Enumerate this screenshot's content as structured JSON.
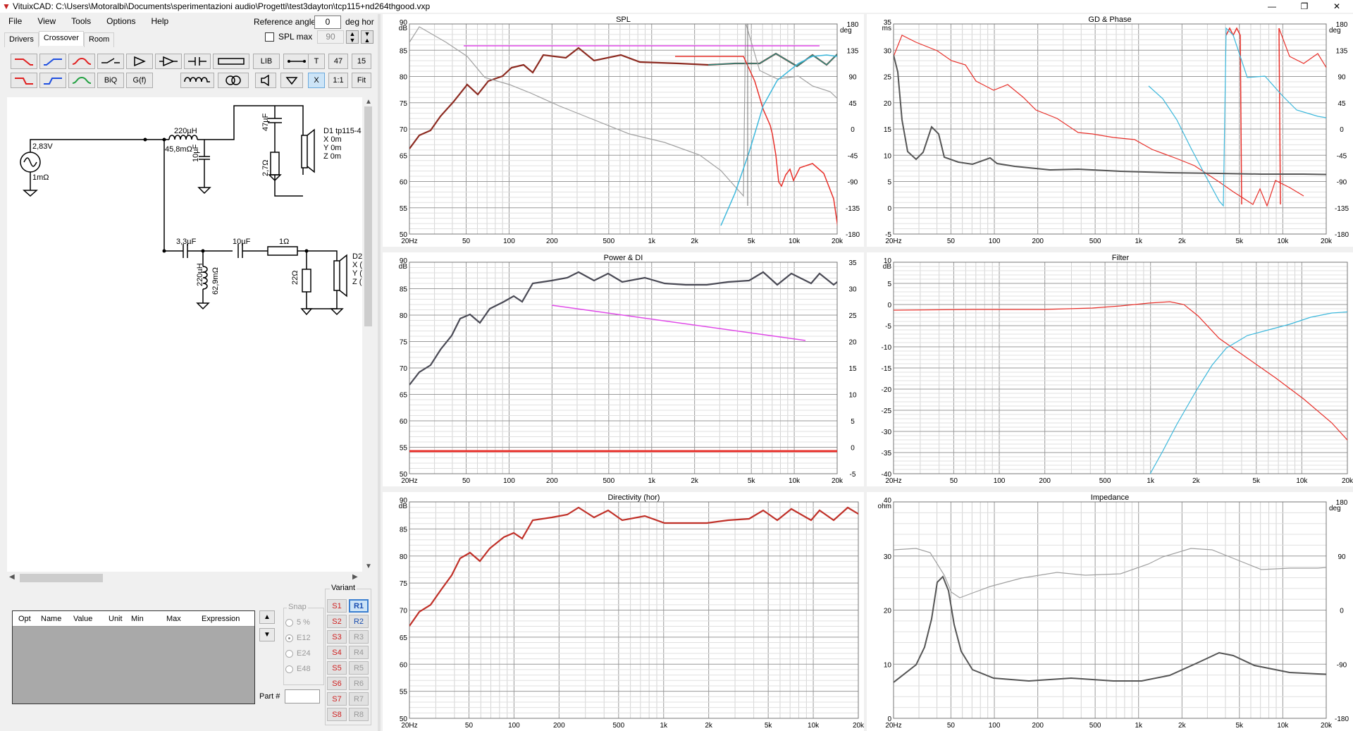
{
  "window": {
    "title": "VituixCAD: C:\\Users\\Motoralbi\\Documents\\sperimentazioni audio\\Progetti\\test3dayton\\tcp115+nd264thgood.vxp",
    "minimize": "—",
    "maximize": "❐",
    "close": "✕"
  },
  "menu": [
    "File",
    "View",
    "Tools",
    "Options",
    "Help"
  ],
  "reference": {
    "angle_label": "Reference angle",
    "angle_value": "0",
    "angle_unit": "deg hor",
    "spl_max_label": "SPL max",
    "spl_max_value": "90"
  },
  "tabs": [
    "Drivers",
    "Crossover",
    "Room"
  ],
  "toolbar": {
    "lib": "LIB",
    "t": "T",
    "n47": "47",
    "n15": "15",
    "biq": "BiQ",
    "gf": "G(f)",
    "x": "X",
    "ratio": "1:1",
    "fit": "Fit"
  },
  "schematic": {
    "source_v": "2,83V",
    "source_r": "1mΩ",
    "l1": "220µH",
    "l1_r": "45,8mΩ",
    "c1": "10µF",
    "c2": "47µF",
    "r1": "2,7Ω",
    "d1_name": "D1 tp115-4",
    "d1_x": "X 0m",
    "d1_y": "Y 0m",
    "d1_z": "Z 0m",
    "c3": "3,3µF",
    "c4": "10µF",
    "r2": "1Ω",
    "l2": "220µH",
    "l2_r": "62,9mΩ",
    "r3": "22Ω",
    "d2_name": "D2",
    "d2_x": "X (",
    "d2_y": "Y (",
    "d2_z": "Z ("
  },
  "opt_table": {
    "headers": [
      "Opt",
      "Name",
      "Value",
      "Unit",
      "Min",
      "Max",
      "Expression"
    ]
  },
  "snap": {
    "title": "Snap",
    "options": [
      "5 %",
      "E12",
      "E24",
      "E48"
    ],
    "selected": "E12"
  },
  "variant": {
    "title": "Variant",
    "s": [
      "S1",
      "S2",
      "S3",
      "S4",
      "S5",
      "S6",
      "S7",
      "S8"
    ],
    "r": [
      "R1",
      "R2",
      "R3",
      "R4",
      "R5",
      "R6",
      "R7",
      "R8"
    ],
    "active": "R1"
  },
  "part_label": "Part #",
  "freq_ticks": [
    "20Hz",
    "50",
    "100",
    "200",
    "500",
    "1k",
    "2k",
    "5k",
    "10k",
    "20k"
  ],
  "colors": {
    "red": "#e8302a",
    "blue": "#3cb8dc",
    "gray": "#a0a0a0",
    "dark": "#4a4a55",
    "magenta": "#e04ae8",
    "darkred": "#8c2a20",
    "greenblue": "#2e8c80"
  },
  "graphs": [
    {
      "id": "spl",
      "title": "SPL",
      "left_unit": "dB",
      "right_unit": "deg",
      "left_ticks": [
        "90",
        "85",
        "80",
        "75",
        "70",
        "65",
        "60",
        "55",
        "50"
      ],
      "right_ticks": [
        "180",
        "135",
        "90",
        "45",
        "0",
        "-45",
        "-90",
        "-135",
        "-180"
      ]
    },
    {
      "id": "gd",
      "title": "GD & Phase",
      "left_unit": "ms",
      "right_unit": "deg",
      "left_ticks": [
        "35",
        "30",
        "25",
        "20",
        "15",
        "10",
        "5",
        "0",
        "-5"
      ],
      "right_ticks": [
        "180",
        "135",
        "90",
        "45",
        "0",
        "-45",
        "-90",
        "-135",
        "-180"
      ]
    },
    {
      "id": "power",
      "title": "Power & DI",
      "left_unit": "dB",
      "right_unit": "",
      "left_ticks": [
        "90",
        "85",
        "80",
        "75",
        "70",
        "65",
        "60",
        "55",
        "50"
      ],
      "right_ticks": [
        "35",
        "30",
        "25",
        "20",
        "15",
        "10",
        "5",
        "0",
        "-5"
      ]
    },
    {
      "id": "filter",
      "title": "Filter",
      "left_unit": "dB",
      "right_unit": "",
      "left_ticks": [
        "10",
        "5",
        "0",
        "-5",
        "-10",
        "-15",
        "-20",
        "-25",
        "-30",
        "-35",
        "-40"
      ],
      "right_ticks": []
    },
    {
      "id": "directivity",
      "title": "Directivity (hor)",
      "left_unit": "dB",
      "right_unit": "",
      "left_ticks": [
        "90",
        "85",
        "80",
        "75",
        "70",
        "65",
        "60",
        "55",
        "50"
      ],
      "right_ticks": []
    },
    {
      "id": "impedance",
      "title": "Impedance",
      "left_unit": "ohm",
      "right_unit": "deg",
      "left_ticks": [
        "40",
        "30",
        "20",
        "10",
        "0"
      ],
      "right_ticks": [
        "180",
        "90",
        "0",
        "-90",
        "-180"
      ]
    }
  ]
}
